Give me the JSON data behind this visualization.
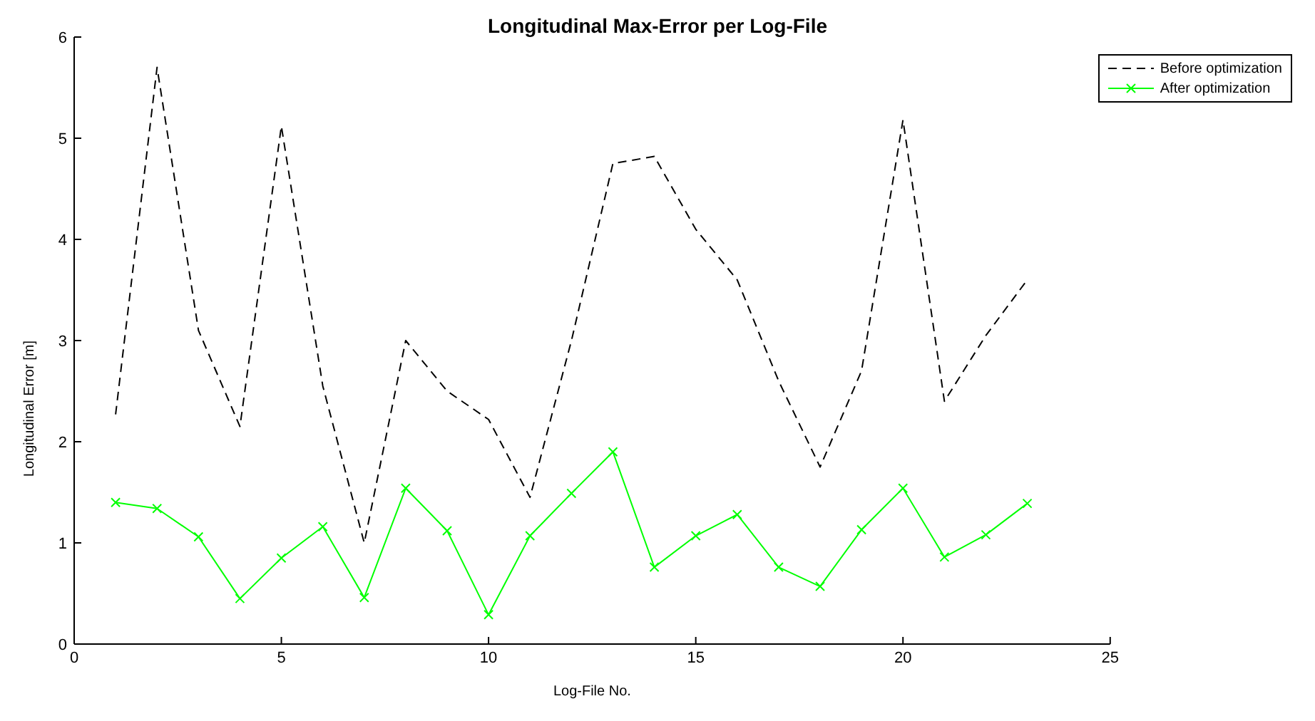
{
  "chart_data": {
    "type": "line",
    "title": "Longitudinal Max-Error per Log-File",
    "xlabel": "Log-File No.",
    "ylabel": "Longitudinal Error [m]",
    "x": [
      1,
      2,
      3,
      4,
      5,
      6,
      7,
      8,
      9,
      10,
      11,
      12,
      13,
      14,
      15,
      16,
      17,
      18,
      19,
      20,
      21,
      22,
      23
    ],
    "series": [
      {
        "name": "Before optimization",
        "color": "#000000",
        "line_style": "dashed",
        "marker": "none",
        "values": [
          2.27,
          5.7,
          3.1,
          2.15,
          5.12,
          2.55,
          1.0,
          3.0,
          2.5,
          2.22,
          1.45,
          3.0,
          4.75,
          4.82,
          4.1,
          3.6,
          2.6,
          1.75,
          2.7,
          5.18,
          2.4,
          3.05,
          3.6
        ]
      },
      {
        "name": "After optimization",
        "color": "#00ff00",
        "line_style": "solid",
        "marker": "cross",
        "values": [
          1.4,
          1.34,
          1.06,
          0.45,
          0.85,
          1.16,
          0.46,
          1.54,
          1.12,
          0.29,
          1.07,
          1.49,
          1.9,
          0.76,
          1.07,
          1.28,
          0.76,
          0.57,
          1.13,
          1.54,
          0.86,
          1.08,
          1.39
        ]
      }
    ],
    "xlim": [
      0,
      25
    ],
    "xticks": [
      0,
      5,
      10,
      15,
      20,
      25
    ],
    "ylim": [
      0,
      6
    ],
    "yticks": [
      0,
      1,
      2,
      3,
      4,
      5,
      6
    ],
    "grid": false,
    "legend": "top right"
  }
}
